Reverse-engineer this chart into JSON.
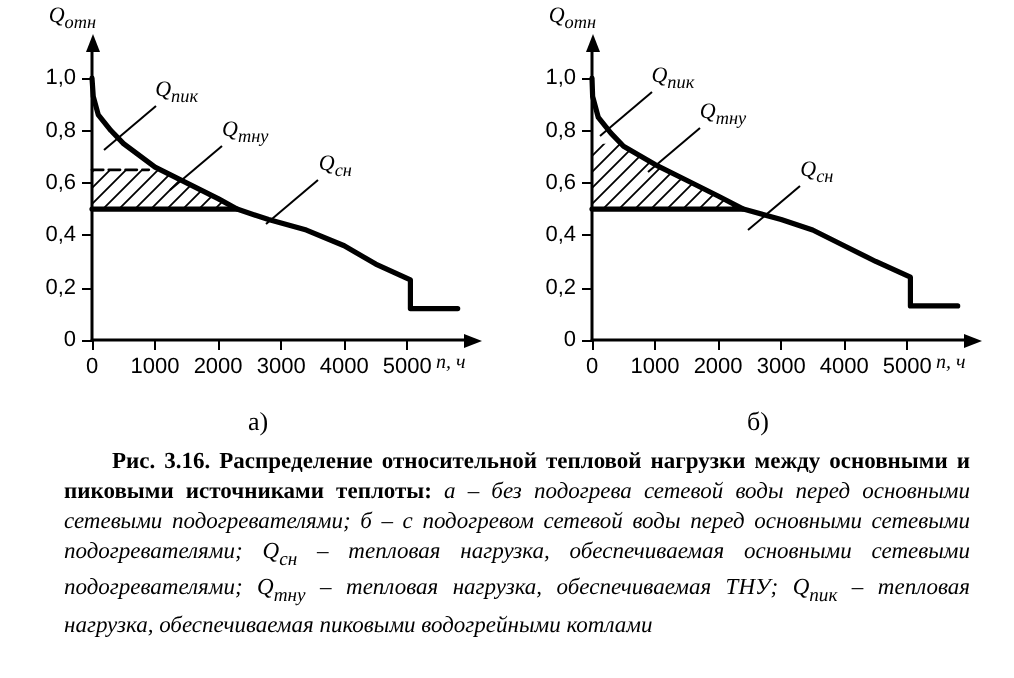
{
  "chart_data": [
    {
      "type": "line",
      "title": "а)",
      "xlabel": "n, ч",
      "ylabel": "Q$_{отн}$",
      "xlim": [
        0,
        5900
      ],
      "ylim": [
        0,
        1.1
      ],
      "xticks": [
        0,
        1000,
        2000,
        3000,
        4000,
        5000
      ],
      "yticks": [
        0,
        {
          "value": 0.2,
          "label": "0,2"
        },
        {
          "value": 0.4,
          "label": "0,4"
        },
        {
          "value": 0.6,
          "label": "0,6"
        },
        {
          "value": 0.8,
          "label": "0,8"
        },
        {
          "value": 1,
          "label": "1,0"
        }
      ],
      "grid": false,
      "marker": "none",
      "line_style": "solid",
      "series": [
        {
          "color": "#000000",
          "x": [
            0,
            20,
            100,
            300,
            500,
            1000,
            1500,
            2000,
            2300,
            2800,
            3400,
            4000,
            4500,
            5050,
            5050,
            5800
          ],
          "values": [
            1.0,
            0.93,
            0.86,
            0.8,
            0.75,
            0.66,
            0.6,
            0.54,
            0.5,
            0.46,
            0.42,
            0.36,
            0.29,
            0.23,
            0.12,
            0.12
          ]
        },
        {
          "color": "#000000",
          "x": [
            0,
            1000,
            1500,
            2000,
            2300
          ],
          "values": [
            0.5,
            0.5,
            0.5,
            0.5,
            0.5
          ],
          "lower": [
            0.5,
            0.5,
            0.5,
            0.5,
            0.5
          ],
          "upper": [
            0.65,
            0.65,
            0.6,
            0.54,
            0.5
          ]
        },
        {
          "color": "#000000",
          "line_style": "dashed",
          "x": [
            0,
            900
          ],
          "values": [
            0.65,
            0.65
          ]
        }
      ],
      "annotations": [
        "Q$_{пик}$",
        "Q$_{тну}$",
        "Q$_{сн}$",
        "Рис. 3.16. Распределение относительной тепловой нагрузки между основными и пиковыми источниками теплоты:",
        "а – без подогрева сетевой воды перед основными сетевыми подогревателями; б – с подогревом сетевой воды перед основными сетевыми подогревателями; Q$_{сн}$ – тепловая нагрузка, обеспечиваемая основными сетевыми подогревателями; Q$_{тну}$ – тепловая нагрузка, обеспечиваемая ТНУ; Q$_{пик}$ – тепловая нагрузка, обеспечиваемая пиковыми водогрейными котлами"
      ]
    },
    {
      "type": "line",
      "title": "б)",
      "xlabel": "n, ч",
      "ylabel": "Q$_{отн}$",
      "xlim": [
        0,
        5900
      ],
      "ylim": [
        0,
        1.1
      ],
      "xticks": [
        0,
        1000,
        2000,
        3000,
        4000,
        5000
      ],
      "yticks": [
        0,
        {
          "value": 0.2,
          "label": "0,2"
        },
        {
          "value": 0.4,
          "label": "0,4"
        },
        {
          "value": 0.6,
          "label": "0,6"
        },
        {
          "value": 0.8,
          "label": "0,8"
        },
        {
          "value": 1,
          "label": "1,0"
        }
      ],
      "grid": false,
      "marker": "none",
      "line_style": "solid",
      "series": [
        {
          "color": "#000000",
          "x": [
            0,
            10,
            100,
            300,
            500,
            1000,
            1500,
            2000,
            2400,
            3000,
            3500,
            4000,
            4500,
            5050,
            5050,
            5800
          ],
          "values": [
            1.0,
            0.93,
            0.85,
            0.79,
            0.74,
            0.67,
            0.61,
            0.55,
            0.5,
            0.46,
            0.42,
            0.36,
            0.3,
            0.24,
            0.13,
            0.13
          ]
        },
        {
          "color": "#000000",
          "x": [
            0,
            450,
            500,
            1000,
            1500,
            2000,
            2400
          ],
          "values": [
            0.5,
            0.5,
            0.5,
            0.5,
            0.5,
            0.5,
            0.5
          ],
          "lower": [
            0.5,
            0.5,
            0.5,
            0.5,
            0.5,
            0.5,
            0.5
          ],
          "upper": [
            0.75,
            0.75,
            0.74,
            0.67,
            0.61,
            0.55,
            0.5
          ]
        }
      ],
      "annotations": [
        "Q$_{пик}$",
        "Q$_{тну}$",
        "Q$_{сн}$"
      ]
    }
  ]
}
